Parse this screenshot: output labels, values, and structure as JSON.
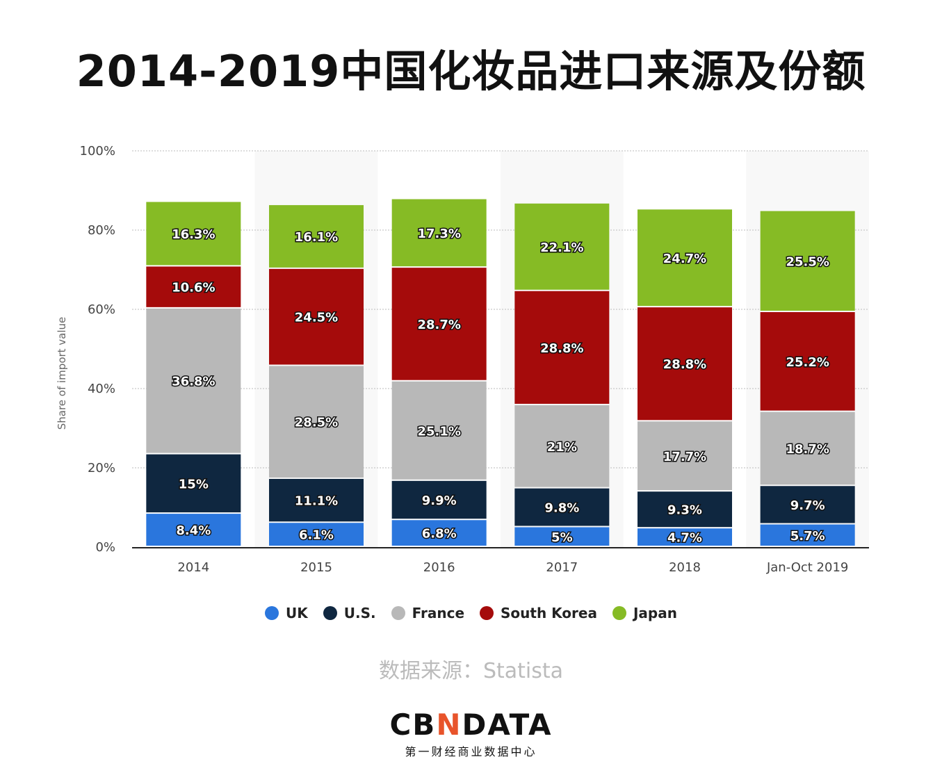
{
  "title": "2014-2019中国化妆品进口来源及份额",
  "source": "数据来源：Statista",
  "logo": {
    "text": "CBNDATA",
    "subtitle": "第一财经商业数据中心",
    "accent": "#e8542b"
  },
  "chart_data": {
    "type": "bar",
    "stacked": true,
    "title": "2014-2019中国化妆品进口来源及份额",
    "xlabel": "",
    "ylabel": "Share of import value",
    "ylim": [
      0,
      100
    ],
    "yticks": [
      "0%",
      "20%",
      "40%",
      "60%",
      "80%",
      "100%"
    ],
    "grid": true,
    "legend_position": "bottom",
    "categories": [
      "2014",
      "2015",
      "2016",
      "2017",
      "2018",
      "Jan-Oct 2019"
    ],
    "series": [
      {
        "name": "UK",
        "color": "#2a76dd",
        "values": [
          8.4,
          6.1,
          6.8,
          5,
          4.7,
          5.7
        ],
        "labels": [
          "8.4%",
          "6.1%",
          "6.8%",
          "5%",
          "4.7%",
          "5.7%"
        ]
      },
      {
        "name": "U.S.",
        "color": "#0f2740",
        "values": [
          15,
          11.1,
          9.9,
          9.8,
          9.3,
          9.7
        ],
        "labels": [
          "15%",
          "11.1%",
          "9.9%",
          "9.8%",
          "9.3%",
          "9.7%"
        ]
      },
      {
        "name": "France",
        "color": "#b8b8b8",
        "values": [
          36.8,
          28.5,
          25.1,
          21,
          17.7,
          18.7
        ],
        "labels": [
          "36.8%",
          "28.5%",
          "25.1%",
          "21%",
          "17.7%",
          "18.7%"
        ]
      },
      {
        "name": "South Korea",
        "color": "#a50b0b",
        "values": [
          10.6,
          24.5,
          28.7,
          28.8,
          28.8,
          25.2
        ],
        "labels": [
          "10.6%",
          "24.5%",
          "28.7%",
          "28.8%",
          "28.8%",
          "25.2%"
        ]
      },
      {
        "name": "Japan",
        "color": "#86bb25",
        "values": [
          16.3,
          16.1,
          17.3,
          22.1,
          24.7,
          25.5
        ],
        "labels": [
          "16.3%",
          "16.1%",
          "17.3%",
          "22.1%",
          "24.7%",
          "25.5%"
        ]
      }
    ]
  }
}
